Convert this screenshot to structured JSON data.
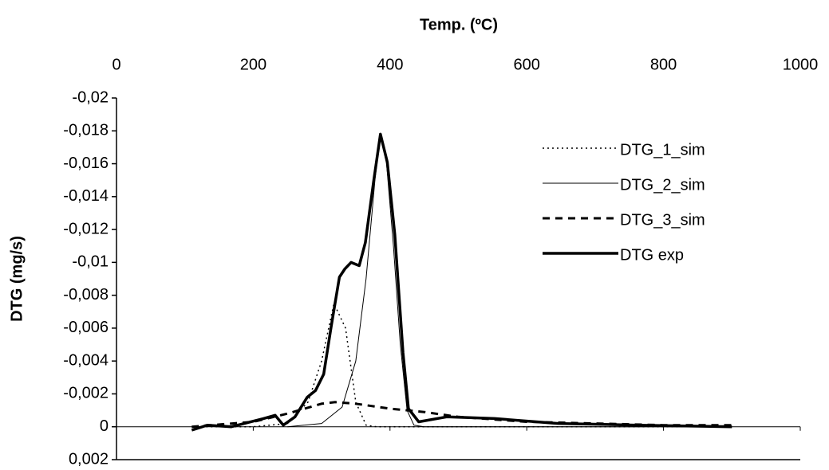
{
  "chart_data": {
    "type": "line",
    "x_label": "Temp. (ºC)",
    "y_label": "DTG (mg/s)",
    "xlim": [
      0,
      1000
    ],
    "xticks": [
      0,
      200,
      400,
      600,
      800,
      1000
    ],
    "ylim": [
      -0.02,
      0.002
    ],
    "yticks": [
      {
        "value": -0.02,
        "label": "-0,02"
      },
      {
        "value": -0.018,
        "label": "-0,018"
      },
      {
        "value": -0.016,
        "label": "-0,016"
      },
      {
        "value": -0.014,
        "label": "-0,014"
      },
      {
        "value": -0.012,
        "label": "-0,012"
      },
      {
        "value": -0.01,
        "label": "-0,01"
      },
      {
        "value": -0.008,
        "label": "-0,008"
      },
      {
        "value": -0.006,
        "label": "-0,006"
      },
      {
        "value": -0.004,
        "label": "-0,004"
      },
      {
        "value": -0.002,
        "label": "-0,002"
      },
      0,
      {
        "value": 0.002,
        "label": "0,002"
      }
    ],
    "y_inverted": true,
    "legend": "upper right",
    "series": [
      {
        "name": "DTG_1_sim",
        "color": "#000000",
        "style": "dotted",
        "width": 1.5,
        "x": [
          110,
          200,
          250,
          280,
          300,
          318,
          335,
          350,
          365,
          380,
          900
        ],
        "values": [
          0,
          0,
          -0.0002,
          -0.0015,
          -0.004,
          -0.0075,
          -0.006,
          -0.0015,
          -0.0001,
          0,
          0
        ]
      },
      {
        "name": "DTG_2_sim",
        "color": "#000000",
        "style": "solid",
        "width": 1,
        "x": [
          250,
          300,
          330,
          350,
          365,
          378,
          386,
          395,
          405,
          415,
          425,
          435,
          450,
          900
        ],
        "values": [
          0,
          -0.0002,
          -0.0012,
          -0.004,
          -0.009,
          -0.015,
          -0.0178,
          -0.016,
          -0.011,
          -0.005,
          -0.001,
          -0.0001,
          0,
          0
        ]
      },
      {
        "name": "DTG_3_sim",
        "color": "#000000",
        "style": "dashed",
        "width": 3,
        "x": [
          110,
          200,
          250,
          300,
          320,
          350,
          400,
          450,
          500,
          600,
          700,
          800,
          900
        ],
        "values": [
          0,
          -0.0003,
          -0.0008,
          -0.0014,
          -0.0015,
          -0.0014,
          -0.0011,
          -0.0009,
          -0.0006,
          -0.0003,
          -0.0002,
          -0.0001,
          -0.0001
        ]
      },
      {
        "name": "DTG exp",
        "color": "#000000",
        "style": "solid",
        "width": 3.5,
        "x": [
          110,
          133,
          168,
          215,
          232,
          244,
          261,
          279,
          291,
          303,
          314,
          326,
          334,
          343,
          355,
          364,
          376,
          386,
          396,
          407,
          419,
          427,
          442,
          483,
          553,
          646,
          763,
          900
        ],
        "values": [
          0.0002,
          -0.0001,
          0,
          -0.0005,
          -0.0007,
          -0.0001,
          -0.0006,
          -0.0018,
          -0.0022,
          -0.0032,
          -0.0061,
          -0.0091,
          -0.0096,
          -0.01,
          -0.0098,
          -0.0112,
          -0.0149,
          -0.0178,
          -0.0161,
          -0.0117,
          -0.0045,
          -0.0011,
          -0.0003,
          -0.0006,
          -0.0005,
          -0.0002,
          -0.0001,
          0
        ]
      }
    ]
  }
}
